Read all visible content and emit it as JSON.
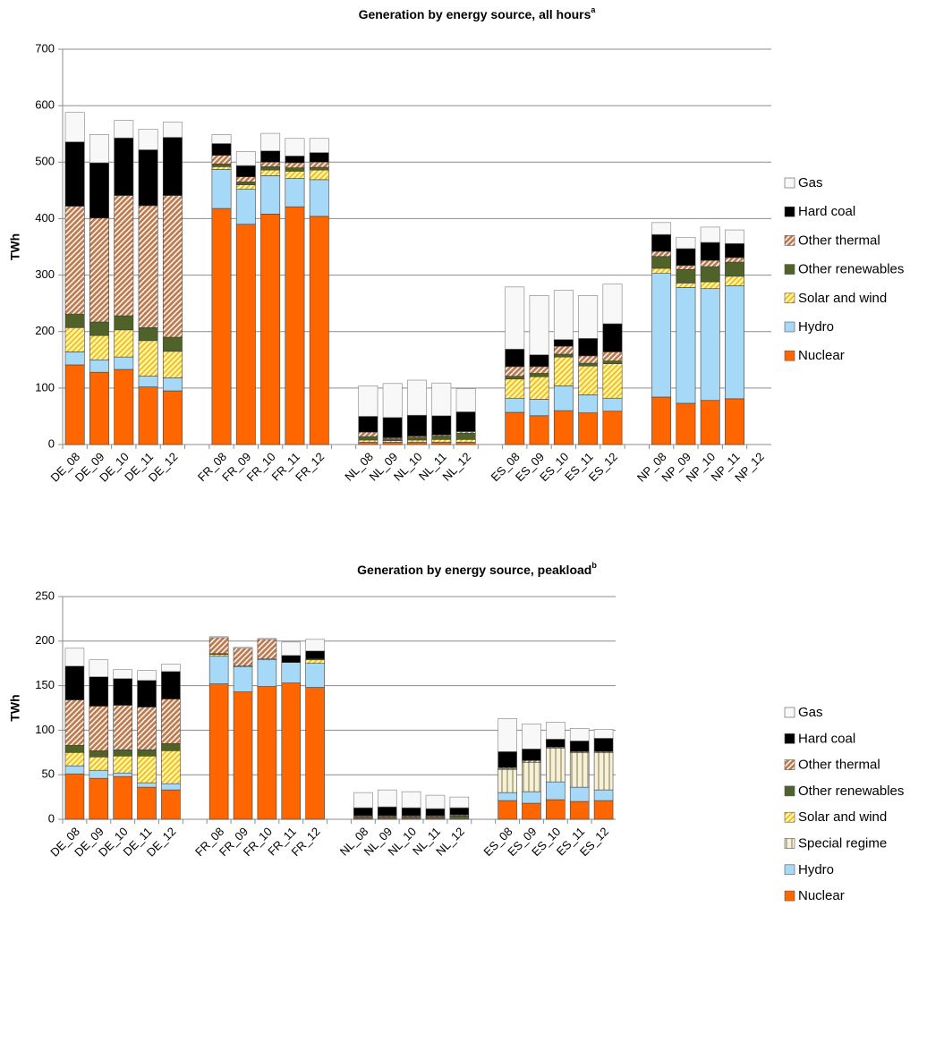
{
  "chart_data": [
    {
      "type": "stacked-bar",
      "title": "Generation by energy source, all hours",
      "title_note": "a",
      "ylabel": "TWh",
      "categories": [
        "DE_08",
        "DE_09",
        "DE_10",
        "DE_11",
        "DE_12",
        null,
        "FR_08",
        "FR_09",
        "FR_10",
        "FR_11",
        "FR_12",
        null,
        "NL_08",
        "NL_09",
        "NL_10",
        "NL_11",
        "NL_12",
        null,
        "ES_08",
        "ES_09",
        "ES_10",
        "ES_11",
        "ES_12",
        null,
        "NP_08",
        "NP_09",
        "NP_10",
        "NP_11",
        "NP_12"
      ],
      "ylim": [
        0,
        700
      ],
      "yticks": [
        0,
        100,
        200,
        300,
        400,
        500,
        600,
        700
      ],
      "grid": true,
      "legend": "right",
      "series": [
        {
          "name": "Nuclear",
          "color": "#ff6600",
          "values": [
            141,
            128,
            133,
            102,
            95,
            null,
            418,
            390,
            408,
            421,
            404,
            null,
            4,
            4,
            4,
            4,
            4,
            null,
            57,
            51,
            60,
            56,
            59,
            null,
            84,
            73,
            78,
            81,
            null
          ]
        },
        {
          "name": "Hydro",
          "color": "#a6d8f7",
          "values": [
            23,
            22,
            22,
            19,
            23,
            null,
            69,
            62,
            68,
            50,
            65,
            null,
            0,
            0,
            0,
            0,
            0,
            null,
            25,
            29,
            44,
            32,
            23,
            null,
            219,
            205,
            198,
            200,
            null
          ]
        },
        {
          "name": "Solar and wind",
          "color": "#fff3a8",
          "pattern": "diagonal",
          "pattern_color": "#f0b400",
          "values": [
            43,
            43,
            48,
            63,
            47,
            null,
            5,
            8,
            10,
            13,
            17,
            null,
            4,
            3,
            4,
            5,
            5,
            null,
            34,
            40,
            51,
            51,
            61,
            null,
            9,
            8,
            12,
            17,
            null
          ]
        },
        {
          "name": "Other renewables",
          "color": "#4f6228",
          "values": [
            24,
            24,
            25,
            23,
            25,
            null,
            5,
            5,
            6,
            6,
            5,
            null,
            6,
            3,
            5,
            6,
            11,
            null,
            5,
            6,
            5,
            5,
            5,
            null,
            21,
            24,
            27,
            25,
            null
          ]
        },
        {
          "name": "Other thermal",
          "color": "#c07a4c",
          "pattern": "diagonal",
          "pattern_color": "#ffffff",
          "values": [
            191,
            184,
            213,
            216,
            251,
            null,
            15,
            9,
            8,
            9,
            9,
            null,
            8,
            2,
            2,
            2,
            3,
            null,
            17,
            12,
            14,
            13,
            16,
            null,
            9,
            7,
            11,
            8,
            null
          ]
        },
        {
          "name": "Hard coal",
          "color": "#000000",
          "values": [
            114,
            98,
            102,
            99,
            103,
            null,
            21,
            20,
            20,
            12,
            17,
            null,
            28,
            36,
            37,
            34,
            35,
            null,
            31,
            21,
            12,
            31,
            50,
            null,
            30,
            30,
            32,
            25,
            null
          ]
        },
        {
          "name": "Gas",
          "color": "#f8f8f8",
          "values": [
            52,
            50,
            31,
            36,
            27,
            null,
            16,
            25,
            31,
            31,
            25,
            null,
            54,
            60,
            62,
            58,
            41,
            null,
            110,
            105,
            87,
            76,
            70,
            null,
            21,
            20,
            27,
            24,
            null
          ]
        }
      ]
    },
    {
      "type": "stacked-bar",
      "title": "Generation by energy source, peakload",
      "title_note": "b",
      "ylabel": "TWh",
      "categories": [
        "DE_08",
        "DE_09",
        "DE_10",
        "DE_11",
        "DE_12",
        null,
        "FR_08",
        "FR_09",
        "FR_10",
        "FR_11",
        "FR_12",
        null,
        "NL_08",
        "NL_09",
        "NL_10",
        "NL_11",
        "NL_12",
        null,
        "ES_08",
        "ES_09",
        "ES_10",
        "ES_11",
        "ES_12"
      ],
      "ylim": [
        0,
        250
      ],
      "yticks": [
        0,
        50,
        100,
        150,
        200,
        250
      ],
      "grid": true,
      "legend": "right",
      "series": [
        {
          "name": "Nuclear",
          "color": "#ff6600",
          "values": [
            51,
            46,
            48,
            36,
            33,
            null,
            152,
            143,
            149,
            153,
            148,
            null,
            1,
            1,
            1,
            1,
            1,
            null,
            21,
            18,
            22,
            20,
            21
          ]
        },
        {
          "name": "Hydro",
          "color": "#a6d8f7",
          "values": [
            9,
            9,
            4,
            5,
            7,
            null,
            31,
            28,
            30,
            23,
            27,
            null,
            0,
            0,
            0,
            0,
            0,
            null,
            9,
            13,
            20,
            16,
            12
          ]
        },
        {
          "name": "Special regime",
          "color": "#f5f0da",
          "pattern": "vertical",
          "pattern_color": "#9a8e5a",
          "values": [
            0,
            0,
            0,
            0,
            0,
            null,
            0,
            0,
            0,
            0,
            0,
            null,
            0,
            0,
            0,
            0,
            0,
            null,
            26,
            33,
            38,
            39,
            42
          ]
        },
        {
          "name": "Solar and wind",
          "color": "#fff3a8",
          "pattern": "diagonal",
          "pattern_color": "#f0b400",
          "values": [
            15,
            15,
            19,
            30,
            37,
            null,
            2,
            1,
            1,
            0,
            4,
            null,
            1,
            1,
            1,
            1,
            1,
            null,
            1,
            0,
            0,
            0,
            0
          ]
        },
        {
          "name": "Other renewables",
          "color": "#4f6228",
          "values": [
            8,
            7,
            7,
            7,
            8,
            null,
            1,
            0,
            0,
            0,
            1,
            null,
            1,
            1,
            1,
            1,
            2,
            null,
            0,
            0,
            0,
            0,
            0
          ]
        },
        {
          "name": "Other thermal",
          "color": "#c07a4c",
          "pattern": "diagonal",
          "pattern_color": "#ffffff",
          "values": [
            51,
            50,
            50,
            48,
            50,
            null,
            18,
            20,
            22,
            0,
            0,
            null,
            1,
            1,
            1,
            1,
            1,
            null,
            1,
            2,
            1,
            1,
            1
          ]
        },
        {
          "name": "Hard coal",
          "color": "#000000",
          "values": [
            38,
            33,
            30,
            30,
            31,
            null,
            0,
            0,
            0,
            8,
            9,
            null,
            9,
            10,
            9,
            8,
            8,
            null,
            18,
            13,
            9,
            12,
            15
          ]
        },
        {
          "name": "Gas",
          "color": "#f8f8f8",
          "values": [
            20,
            19,
            10,
            11,
            8,
            null,
            1,
            1,
            1,
            15,
            13,
            null,
            17,
            19,
            18,
            15,
            12,
            null,
            37,
            28,
            19,
            14,
            10
          ]
        }
      ]
    }
  ]
}
